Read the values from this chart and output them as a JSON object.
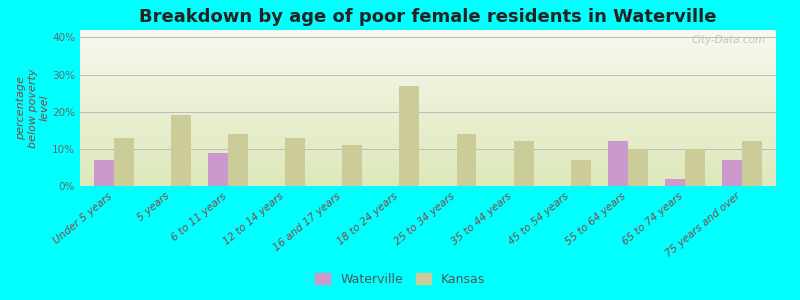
{
  "title": "Breakdown by age of poor female residents in Waterville",
  "ylabel": "percentage\nbelow poverty\nlevel",
  "background_color": "#00FFFF",
  "categories": [
    "Under 5 years",
    "5 years",
    "6 to 11 years",
    "12 to 14 years",
    "16 and 17 years",
    "18 to 24 years",
    "25 to 34 years",
    "35 to 44 years",
    "45 to 54 years",
    "55 to 64 years",
    "65 to 74 years",
    "75 years and over"
  ],
  "waterville": [
    7,
    0,
    9,
    0,
    0,
    0,
    0,
    0,
    0,
    12,
    2,
    7
  ],
  "kansas": [
    13,
    19,
    14,
    13,
    11,
    27,
    14,
    12,
    7,
    10,
    10,
    12
  ],
  "waterville_color": "#cc99cc",
  "kansas_color": "#cccc99",
  "bar_width": 0.35,
  "ylim": [
    0,
    42
  ],
  "yticks": [
    0,
    10,
    20,
    30,
    40
  ],
  "ytick_labels": [
    "0%",
    "10%",
    "20%",
    "30%",
    "40%"
  ],
  "title_fontsize": 13,
  "axis_label_fontsize": 8,
  "tick_fontsize": 7.5,
  "legend_fontsize": 9,
  "watermark": "City-Data.com",
  "grad_top": "#f8f8ee",
  "grad_bottom": "#dde8bb"
}
